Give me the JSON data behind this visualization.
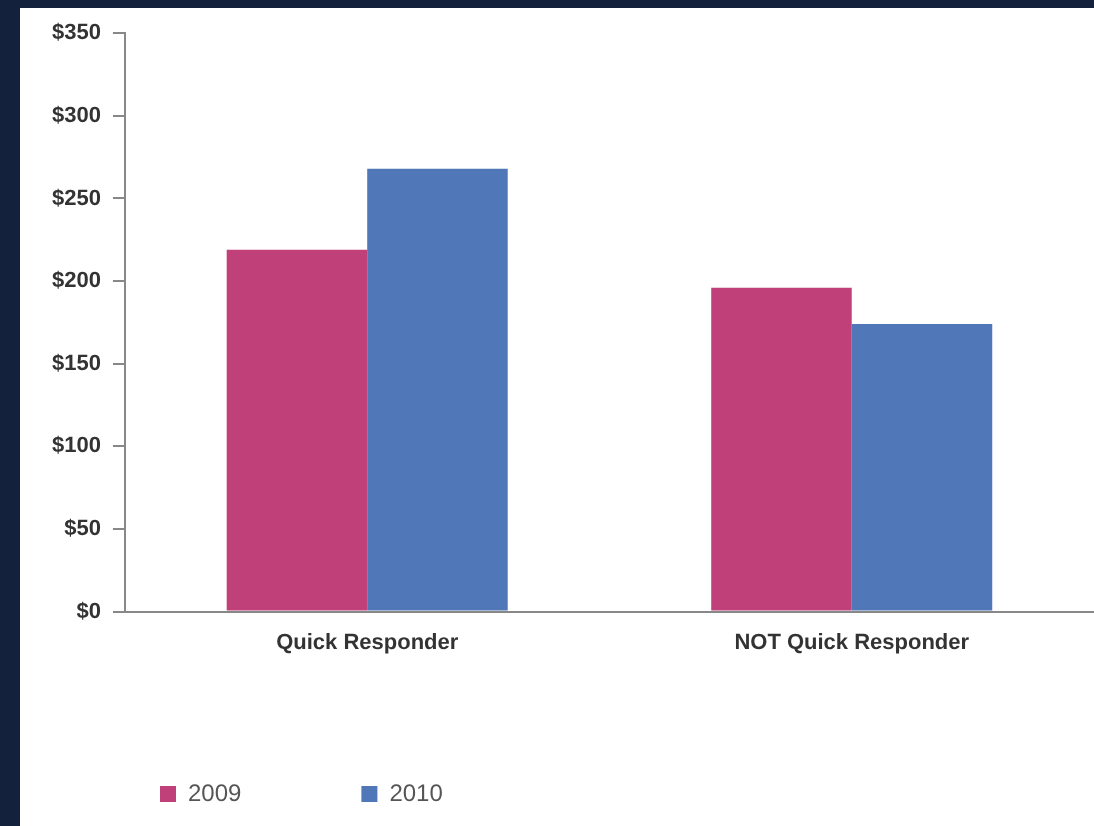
{
  "chart_data": {
    "type": "bar",
    "categories": [
      "Quick Responder",
      "NOT Quick Responder"
    ],
    "series": [
      {
        "name": "2009",
        "color": "#c0407a",
        "values": [
          219,
          196
        ]
      },
      {
        "name": "2010",
        "color": "#5077b8",
        "values": [
          268,
          174
        ]
      }
    ],
    "ylim": [
      0,
      350
    ],
    "yticks": [
      {
        "value": 0,
        "label": "$0"
      },
      {
        "value": 50,
        "label": "$50"
      },
      {
        "value": 100,
        "label": "$100"
      },
      {
        "value": 150,
        "label": "$150"
      },
      {
        "value": 200,
        "label": "$200"
      },
      {
        "value": 250,
        "label": "$250"
      },
      {
        "value": 300,
        "label": "$300"
      },
      {
        "value": 350,
        "label": "$350"
      }
    ],
    "grid": false,
    "legend": "bottom left"
  }
}
